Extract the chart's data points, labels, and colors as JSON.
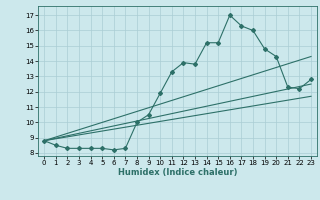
{
  "xlabel": "Humidex (Indice chaleur)",
  "bg_color": "#cce8ec",
  "grid_color": "#aacdd4",
  "line_color": "#2d7068",
  "xlim": [
    -0.5,
    23.5
  ],
  "ylim": [
    7.8,
    17.6
  ],
  "yticks": [
    8,
    9,
    10,
    11,
    12,
    13,
    14,
    15,
    16,
    17
  ],
  "xticks": [
    0,
    1,
    2,
    3,
    4,
    5,
    6,
    7,
    8,
    9,
    10,
    11,
    12,
    13,
    14,
    15,
    16,
    17,
    18,
    19,
    20,
    21,
    22,
    23
  ],
  "series1_x": [
    0,
    1,
    2,
    3,
    4,
    5,
    6,
    7,
    8,
    9,
    10,
    11,
    12,
    13,
    14,
    15,
    16,
    17,
    18,
    19,
    20,
    21,
    22,
    23
  ],
  "series1_y": [
    8.8,
    8.5,
    8.3,
    8.3,
    8.3,
    8.3,
    8.2,
    8.3,
    10.0,
    10.5,
    11.9,
    13.3,
    13.9,
    13.8,
    15.2,
    15.2,
    17.0,
    16.3,
    16.0,
    14.8,
    14.3,
    12.3,
    12.2,
    12.8
  ],
  "line1_x": [
    0,
    23
  ],
  "line1_y": [
    8.8,
    14.3
  ],
  "line2_x": [
    0,
    23
  ],
  "line2_y": [
    8.8,
    12.5
  ],
  "line3_x": [
    0,
    23
  ],
  "line3_y": [
    8.8,
    11.7
  ],
  "tick_fontsize": 5.0,
  "xlabel_fontsize": 6.0,
  "marker_size": 2.0,
  "line_width": 0.8
}
